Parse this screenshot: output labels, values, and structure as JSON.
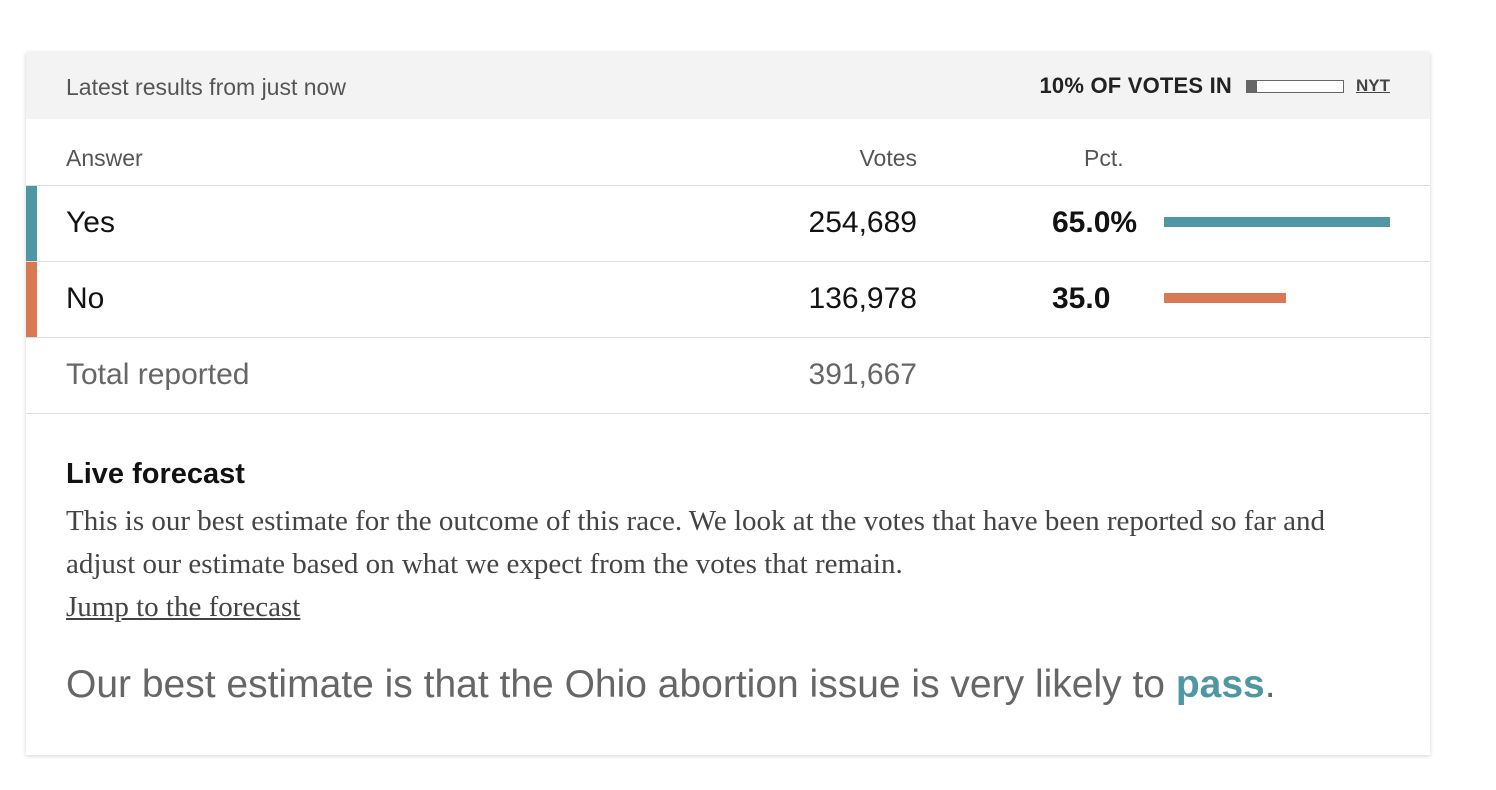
{
  "header": {
    "updated": "Latest results from just now",
    "votes_in_label": "10% OF VOTES IN",
    "votes_in_fraction": 0.1,
    "source": "NYT"
  },
  "columns": {
    "answer": "Answer",
    "votes": "Votes",
    "pct": "Pct."
  },
  "rows": [
    {
      "name": "Yes",
      "votes": "254,689",
      "pct_label": "65.0%",
      "pct": 65.0,
      "color": "#4e97a3"
    },
    {
      "name": "No",
      "votes": "136,978",
      "pct_label": "35.0",
      "pct": 35.0,
      "color": "#d97852"
    }
  ],
  "total": {
    "label": "Total reported",
    "votes": "391,667"
  },
  "forecast": {
    "title": "Live forecast",
    "body": "This is our best estimate for the outcome of this race. We look at the votes that have been reported so far and adjust our estimate based on what we expect from the votes that remain.",
    "link": "Jump to the forecast",
    "summary_prefix": "Our best estimate is that the Ohio abortion issue is very likely to ",
    "summary_outcome": "pass",
    "summary_suffix": "."
  }
}
